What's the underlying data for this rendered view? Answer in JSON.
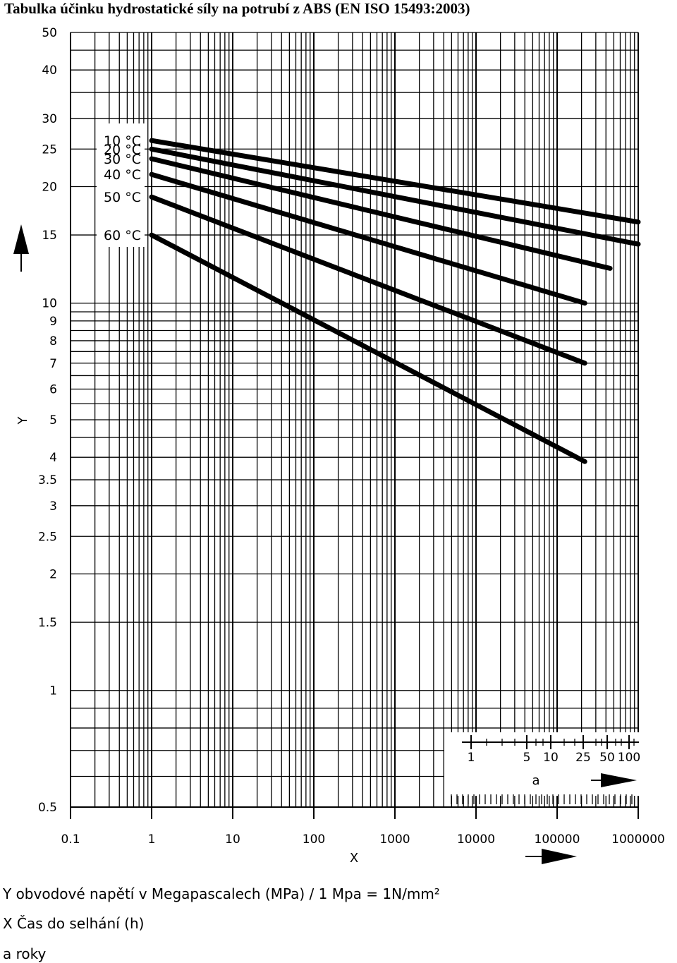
{
  "title": "Tabulka účinku hydrostatické síly na potrubí z ABS (EN ISO 15493:2003)",
  "legend": {
    "y": "Y obvodové napětí v Megapascalech (MPa) / 1 Mpa = 1N/mm²",
    "x": "X Čas do selhání (h)",
    "a": "a  roky"
  },
  "chart_data": {
    "type": "line",
    "title": "Tabulka účinku hydrostatické síly na potrubí z ABS (EN ISO 15493:2003)",
    "xlabel": "X",
    "ylabel": "Y",
    "xscale": "log",
    "yscale": "log",
    "xlim": [
      0.1,
      1000000
    ],
    "ylim": [
      0.5,
      50
    ],
    "grid": true,
    "x_ticks": [
      "0.1",
      "1",
      "10",
      "100",
      "1000",
      "10000",
      "100000",
      "1000000"
    ],
    "y_ticks": [
      "0.5",
      "1",
      "1.5",
      "2",
      "2.5",
      "3",
      "3.5",
      "4",
      "5",
      "6",
      "7",
      "8",
      "9",
      "10",
      "15",
      "20",
      "25",
      "30",
      "40",
      "50"
    ],
    "series": [
      {
        "name": "10 °C",
        "x": [
          1,
          1000000
        ],
        "y": [
          26.3,
          16.2
        ]
      },
      {
        "name": "20 °C",
        "x": [
          1,
          1000000
        ],
        "y": [
          25.0,
          14.2
        ]
      },
      {
        "name": "30 °C",
        "x": [
          1,
          450000
        ],
        "y": [
          23.6,
          12.3
        ]
      },
      {
        "name": "40 °C",
        "x": [
          1,
          219000
        ],
        "y": [
          21.5,
          10.0
        ]
      },
      {
        "name": "50 °C",
        "x": [
          1,
          219000
        ],
        "y": [
          18.8,
          7.0
        ]
      },
      {
        "name": "60 °C",
        "x": [
          1,
          219000
        ],
        "y": [
          15.0,
          3.9
        ]
      }
    ],
    "years_axis": {
      "label": "a",
      "ticks": [
        "1",
        "5",
        "10",
        "25",
        "50",
        "100"
      ]
    }
  }
}
